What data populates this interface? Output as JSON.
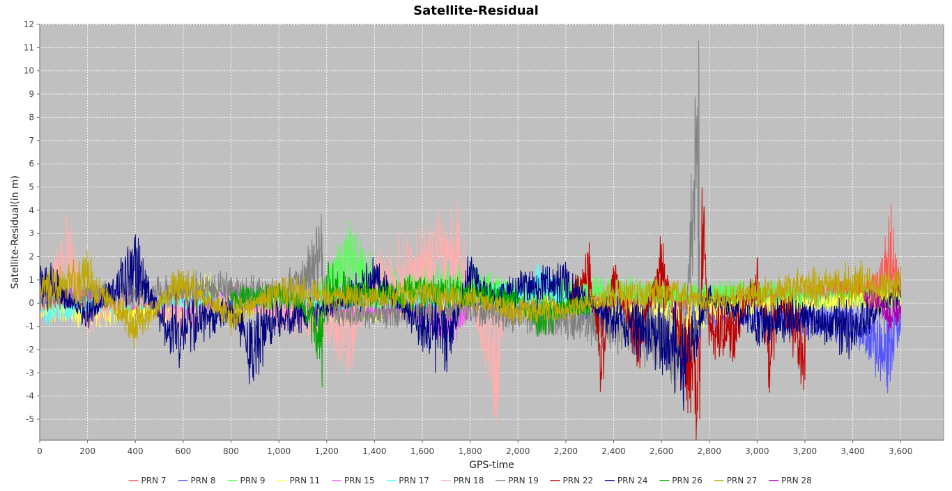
{
  "chart_data": {
    "type": "line",
    "title": "Satellite-Residual",
    "xlabel": "GPS-time",
    "ylabel": "Satellite-Residual(in m)",
    "xlim": [
      0,
      3780
    ],
    "ylim": [
      -5.9,
      12
    ],
    "x_ticks": [
      0,
      200,
      400,
      600,
      800,
      1000,
      1200,
      1400,
      1600,
      1800,
      2000,
      2200,
      2400,
      2600,
      2800,
      3000,
      3200,
      3400,
      3600
    ],
    "x_tick_labels": [
      "0",
      "200",
      "400",
      "600",
      "800",
      "1,000",
      "1,200",
      "1,400",
      "1,600",
      "1,800",
      "2,000",
      "2,200",
      "2,400",
      "2,600",
      "2,800",
      "3,000",
      "3,200",
      "3,400",
      "3,600"
    ],
    "y_ticks": [
      -5,
      -4,
      -3,
      -2,
      -1,
      0,
      1,
      2,
      3,
      4,
      5,
      6,
      7,
      8,
      9,
      10,
      11,
      12
    ],
    "y_tick_labels": [
      "-5",
      "-4",
      "-3",
      "-2",
      "-1",
      "0",
      "1",
      "2",
      "3",
      "4",
      "5",
      "6",
      "7",
      "8",
      "9",
      "10",
      "11",
      "12"
    ],
    "grid": true,
    "plot_background": "#c0c0c0",
    "legend_position": "bottom",
    "series": [
      {
        "name": "PRN 7",
        "color": "#ff5555",
        "x_range": [
          0,
          3600
        ],
        "samples": [
          [
            0,
            0.3
          ],
          [
            200,
            0.1
          ],
          [
            400,
            -0.2
          ],
          [
            600,
            0.2
          ],
          [
            800,
            -0.1
          ],
          [
            1000,
            0.2
          ],
          [
            1200,
            -0.3
          ],
          [
            1400,
            0.1
          ],
          [
            1600,
            -0.2
          ],
          [
            1800,
            0.1
          ],
          [
            2000,
            -0.1
          ],
          [
            2200,
            0.2
          ],
          [
            2400,
            0.1
          ],
          [
            2600,
            -0.1
          ],
          [
            2800,
            0.2
          ],
          [
            3000,
            0.3
          ],
          [
            3200,
            0.5
          ],
          [
            3400,
            0.8
          ],
          [
            3500,
            1.0
          ],
          [
            3560,
            3.2
          ],
          [
            3600,
            0.9
          ]
        ]
      },
      {
        "name": "PRN 8",
        "color": "#5555ff",
        "x_range": [
          0,
          3600
        ],
        "samples": [
          [
            0,
            0.5
          ],
          [
            200,
            0.4
          ],
          [
            400,
            0.2
          ],
          [
            600,
            -0.1
          ],
          [
            800,
            0.3
          ],
          [
            1000,
            -0.2
          ],
          [
            1200,
            0.1
          ],
          [
            1400,
            -0.3
          ],
          [
            1600,
            0.2
          ],
          [
            1800,
            0.0
          ],
          [
            2000,
            -0.2
          ],
          [
            2200,
            -0.4
          ],
          [
            2400,
            -0.6
          ],
          [
            2600,
            -0.9
          ],
          [
            2800,
            -0.8
          ],
          [
            3000,
            -0.6
          ],
          [
            3200,
            -1.0
          ],
          [
            3400,
            -1.2
          ],
          [
            3550,
            -3.1
          ],
          [
            3600,
            -1.1
          ]
        ]
      },
      {
        "name": "PRN 9",
        "color": "#55ff55",
        "x_range": [
          1150,
          3600
        ],
        "samples": [
          [
            1150,
            0.2
          ],
          [
            1200,
            1.0
          ],
          [
            1300,
            2.9
          ],
          [
            1400,
            1.2
          ],
          [
            1500,
            0.9
          ],
          [
            1600,
            1.1
          ],
          [
            1700,
            1.3
          ],
          [
            1800,
            1.0
          ],
          [
            1900,
            0.9
          ],
          [
            2000,
            0.5
          ],
          [
            2200,
            0.7
          ],
          [
            2400,
            0.8
          ],
          [
            2600,
            0.6
          ],
          [
            2800,
            0.5
          ],
          [
            3000,
            0.6
          ],
          [
            3200,
            0.3
          ],
          [
            3400,
            0.4
          ],
          [
            3600,
            0.2
          ]
        ]
      },
      {
        "name": "PRN 11",
        "color": "#ffff55",
        "x_range": [
          0,
          3600
        ],
        "samples": [
          [
            0,
            -0.4
          ],
          [
            200,
            -0.6
          ],
          [
            400,
            -0.5
          ],
          [
            600,
            -0.3
          ],
          [
            700,
            1.0
          ],
          [
            800,
            -0.4
          ],
          [
            1000,
            -0.1
          ],
          [
            1200,
            -0.6
          ],
          [
            1400,
            -0.4
          ],
          [
            1600,
            -0.3
          ],
          [
            1800,
            -0.2
          ],
          [
            2000,
            -0.4
          ],
          [
            2200,
            -0.3
          ],
          [
            2400,
            -0.4
          ],
          [
            2600,
            -0.5
          ],
          [
            2700,
            -1.5
          ],
          [
            2800,
            -0.6
          ],
          [
            3000,
            -0.3
          ],
          [
            3200,
            -0.1
          ],
          [
            3400,
            0.2
          ],
          [
            3600,
            0.3
          ]
        ]
      },
      {
        "name": "PRN 15",
        "color": "#ff55ff",
        "x_range": [
          0,
          1800
        ],
        "samples": [
          [
            0,
            0.4
          ],
          [
            200,
            0.3
          ],
          [
            400,
            0.1
          ],
          [
            600,
            -0.2
          ],
          [
            800,
            0.2
          ],
          [
            1000,
            -0.3
          ],
          [
            1200,
            -0.4
          ],
          [
            1400,
            -0.2
          ],
          [
            1600,
            -0.6
          ],
          [
            1700,
            -1.2
          ],
          [
            1800,
            -0.8
          ]
        ]
      },
      {
        "name": "PRN 17",
        "color": "#55ffff",
        "x_range": [
          0,
          2200
        ],
        "samples": [
          [
            0,
            -0.6
          ],
          [
            200,
            -0.2
          ],
          [
            400,
            -0.1
          ],
          [
            600,
            0.0
          ],
          [
            800,
            0.2
          ],
          [
            1000,
            0.1
          ],
          [
            1200,
            0.1
          ],
          [
            1400,
            0.0
          ],
          [
            1600,
            0.3
          ],
          [
            1800,
            0.4
          ],
          [
            2000,
            0.5
          ],
          [
            2100,
            1.2
          ],
          [
            2200,
            0.3
          ]
        ]
      },
      {
        "name": "PRN 18",
        "color": "#ffafaf",
        "x_range": [
          0,
          1950
        ],
        "samples": [
          [
            0,
            -0.5
          ],
          [
            120,
            3.2
          ],
          [
            200,
            -1.0
          ],
          [
            400,
            0.6
          ],
          [
            600,
            -1.3
          ],
          [
            800,
            0.6
          ],
          [
            1000,
            -0.8
          ],
          [
            1200,
            -1.3
          ],
          [
            1300,
            -2.8
          ],
          [
            1400,
            1.5
          ],
          [
            1600,
            2.6
          ],
          [
            1750,
            3.4
          ],
          [
            1850,
            -2.0
          ],
          [
            1920,
            -4.4
          ],
          [
            1950,
            0.5
          ]
        ]
      },
      {
        "name": "PRN 19",
        "color": "#808080",
        "x_range": [
          0,
          2800
        ],
        "samples": [
          [
            0,
            0.2
          ],
          [
            200,
            0.5
          ],
          [
            400,
            0.6
          ],
          [
            600,
            0.8
          ],
          [
            800,
            0.9
          ],
          [
            1000,
            0.6
          ],
          [
            1100,
            1.3
          ],
          [
            1180,
            3.0
          ],
          [
            1200,
            -0.6
          ],
          [
            1400,
            -0.7
          ],
          [
            1600,
            -0.6
          ],
          [
            1800,
            -0.5
          ],
          [
            2000,
            -0.8
          ],
          [
            2200,
            -1.0
          ],
          [
            2400,
            -1.5
          ],
          [
            2600,
            -2.0
          ],
          [
            2660,
            -3.6
          ],
          [
            2700,
            -1.5
          ],
          [
            2756,
            11.3
          ],
          [
            2760,
            -0.5
          ],
          [
            2800,
            -0.6
          ]
        ]
      },
      {
        "name": "PRN 22",
        "color": "#c00000",
        "x_range": [
          2220,
          3200
        ],
        "samples": [
          [
            2220,
            0.3
          ],
          [
            2300,
            2.0
          ],
          [
            2350,
            -3.3
          ],
          [
            2400,
            1.5
          ],
          [
            2500,
            -2.5
          ],
          [
            2600,
            2.5
          ],
          [
            2700,
            -3.5
          ],
          [
            2760,
            -5.0
          ],
          [
            2770,
            5.0
          ],
          [
            2800,
            -1.5
          ],
          [
            2900,
            -2.0
          ],
          [
            3000,
            1.6
          ],
          [
            3050,
            -3.2
          ],
          [
            3100,
            0.0
          ],
          [
            3200,
            -3.3
          ]
        ]
      },
      {
        "name": "PRN 24",
        "color": "#000080",
        "x_range": [
          0,
          3600
        ],
        "samples": [
          [
            0,
            1.9
          ],
          [
            200,
            -0.8
          ],
          [
            400,
            2.3
          ],
          [
            550,
            -2.1
          ],
          [
            800,
            -0.4
          ],
          [
            880,
            -2.8
          ],
          [
            1000,
            -1.0
          ],
          [
            1200,
            -0.5
          ],
          [
            1400,
            1.6
          ],
          [
            1600,
            -1.4
          ],
          [
            1700,
            -2.5
          ],
          [
            1800,
            1.8
          ],
          [
            1900,
            0.3
          ],
          [
            2000,
            1.1
          ],
          [
            2200,
            1.3
          ],
          [
            2400,
            -1.2
          ],
          [
            2600,
            -2.2
          ],
          [
            2700,
            -3.5
          ],
          [
            2800,
            0.5
          ],
          [
            3000,
            -1.4
          ],
          [
            3200,
            -1.0
          ],
          [
            3400,
            -1.7
          ],
          [
            3600,
            0.8
          ]
        ]
      },
      {
        "name": "PRN 26",
        "color": "#00a800",
        "x_range": [
          800,
          2300
        ],
        "samples": [
          [
            800,
            0.3
          ],
          [
            1000,
            0.5
          ],
          [
            1100,
            0.0
          ],
          [
            1180,
            -3.1
          ],
          [
            1200,
            1.2
          ],
          [
            1400,
            0.4
          ],
          [
            1600,
            0.8
          ],
          [
            1800,
            0.6
          ],
          [
            2000,
            0.2
          ],
          [
            2100,
            -1.2
          ],
          [
            2200,
            -0.2
          ],
          [
            2300,
            -0.3
          ]
        ]
      },
      {
        "name": "PRN 27",
        "color": "#c0a800",
        "x_range": [
          0,
          3600
        ],
        "samples": [
          [
            0,
            0.8
          ],
          [
            200,
            1.5
          ],
          [
            400,
            -1.5
          ],
          [
            600,
            1.4
          ],
          [
            800,
            -0.9
          ],
          [
            1000,
            0.8
          ],
          [
            1200,
            0.5
          ],
          [
            1400,
            0.3
          ],
          [
            1600,
            0.6
          ],
          [
            1800,
            0.4
          ],
          [
            2000,
            -0.6
          ],
          [
            2200,
            -0.4
          ],
          [
            2400,
            0.5
          ],
          [
            2600,
            0.7
          ],
          [
            2800,
            0.3
          ],
          [
            3000,
            0.6
          ],
          [
            3200,
            1.0
          ],
          [
            3400,
            1.2
          ],
          [
            3600,
            1.1
          ]
        ]
      },
      {
        "name": "PRN 28",
        "color": "#b000b0",
        "x_range": [
          3450,
          3600
        ],
        "samples": [
          [
            3450,
            0.3
          ],
          [
            3500,
            0.2
          ],
          [
            3550,
            -0.8
          ],
          [
            3600,
            -0.5
          ]
        ]
      }
    ]
  }
}
